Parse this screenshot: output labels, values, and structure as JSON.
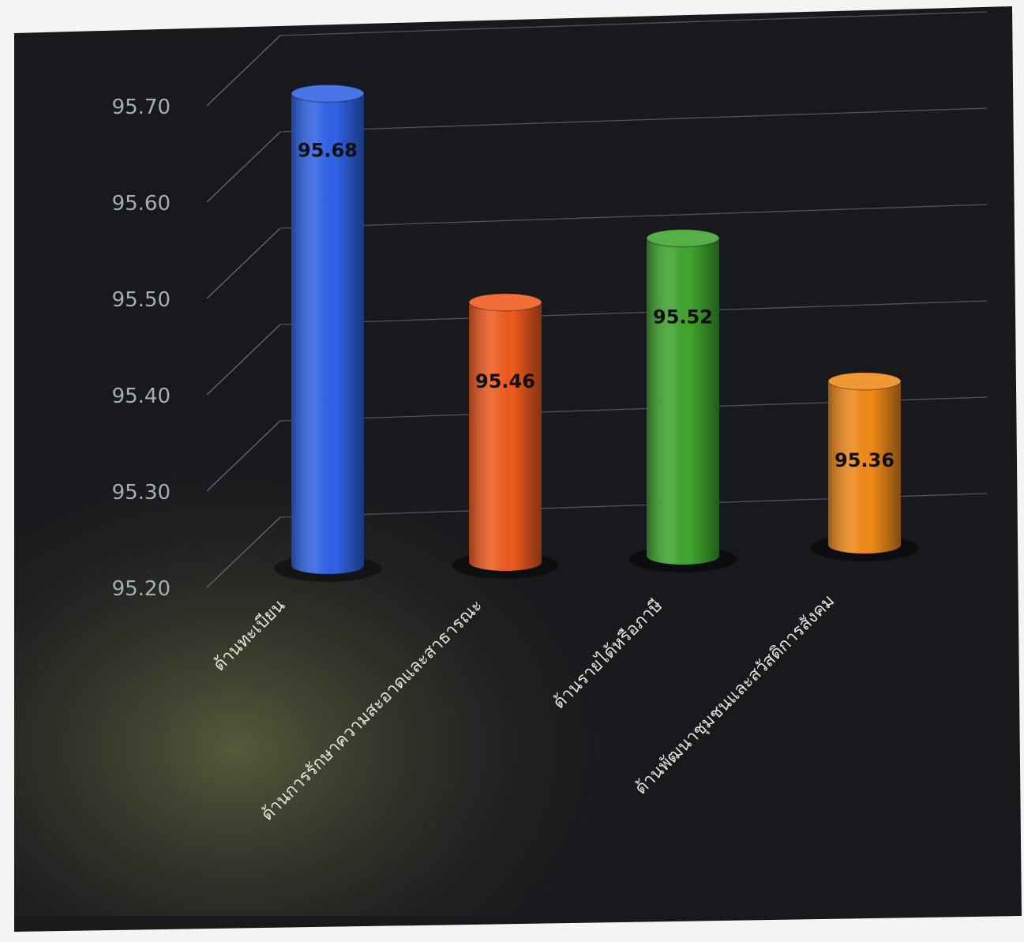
{
  "chart_data": {
    "type": "bar",
    "title": "",
    "xlabel": "",
    "ylabel": "",
    "ylim": [
      95.2,
      95.7
    ],
    "yticks": [
      "95.20",
      "95.30",
      "95.40",
      "95.50",
      "95.60",
      "95.70"
    ],
    "grid": true,
    "categories": [
      "ด้านทะเบียน",
      "ด้านการรักษาความสะอาดและสาธารณะ",
      "ด้านรายได้หรือภาษี",
      "ด้านพัฒนาชุมชนและสวัสดิการสังคม"
    ],
    "values": [
      95.68,
      95.46,
      95.52,
      95.36
    ],
    "value_labels": [
      "95.68",
      "95.46",
      "95.52",
      "95.36"
    ],
    "colors": [
      "#2f63e6",
      "#f05a1e",
      "#3fa52e",
      "#f08a18"
    ],
    "background": "#15171b"
  }
}
